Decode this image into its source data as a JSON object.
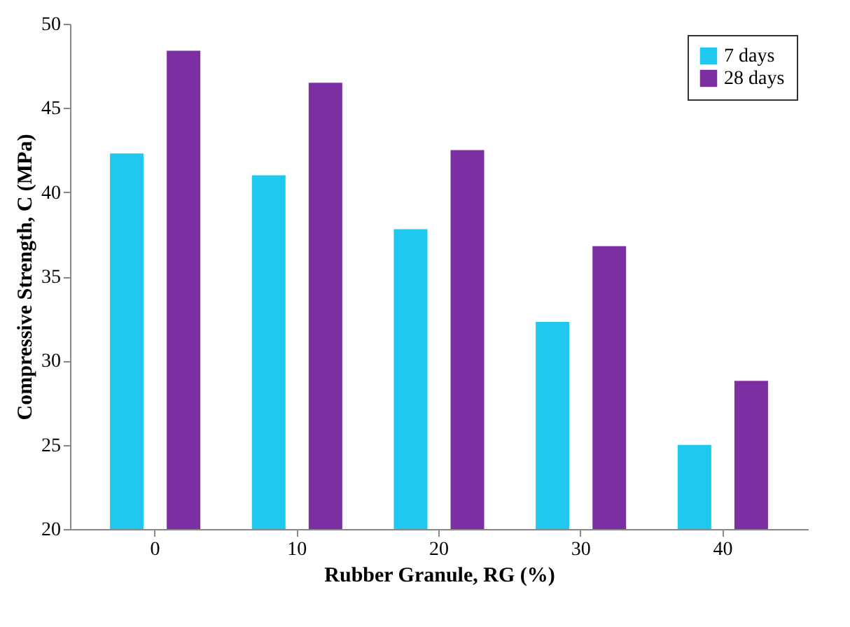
{
  "chart_data": {
    "type": "bar",
    "xlabel": "Rubber Granule, RG (%)",
    "ylabel": "Compressive Strength, C (MPa)",
    "categories": [
      "0",
      "10",
      "20",
      "30",
      "40"
    ],
    "series": [
      {
        "name": "7 days",
        "color": "#1ec8ee",
        "values": [
          42.3,
          41.0,
          37.8,
          32.3,
          25.0
        ]
      },
      {
        "name": "28 days",
        "color": "#7b2fa0",
        "values": [
          48.4,
          46.5,
          42.5,
          36.8,
          28.8
        ]
      }
    ],
    "ylim": [
      20,
      50
    ],
    "yticks": [
      20,
      25,
      30,
      35,
      40,
      45,
      50
    ],
    "grid": false,
    "legend": "top right"
  }
}
